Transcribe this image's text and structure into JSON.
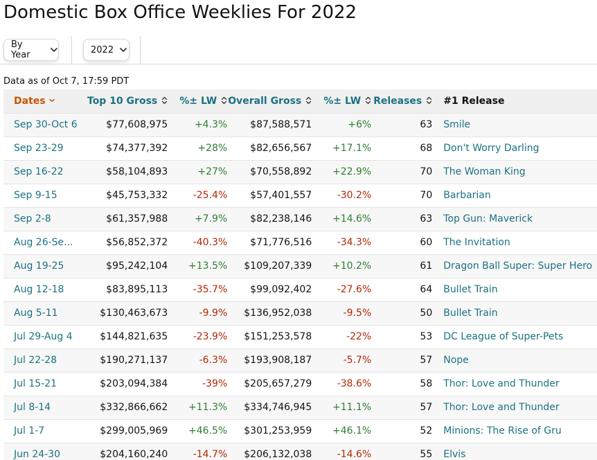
{
  "title": "Domestic Box Office Weeklies For 2022",
  "filters": {
    "view_label": "By Year",
    "year_label": "2022"
  },
  "as_of": "Data as of Oct 7, 17:59 PDT",
  "table": {
    "headers": {
      "dates": "Dates",
      "top10": "Top 10 Gross",
      "pct_lw1": "%± LW",
      "overall": "Overall Gross",
      "pct_lw2": "%± LW",
      "releases": "Releases",
      "first": "#1 Release"
    },
    "rows": [
      {
        "dates": "Sep 30-Oct 6",
        "top10": "$77,608,975",
        "pct1": "+4.3%",
        "pct1_sign": "pos",
        "overall": "$87,588,571",
        "pct2": "+6%",
        "pct2_sign": "pos",
        "releases": "63",
        "first": "Smile"
      },
      {
        "dates": "Sep 23-29",
        "top10": "$74,377,392",
        "pct1": "+28%",
        "pct1_sign": "pos",
        "overall": "$82,656,567",
        "pct2": "+17.1%",
        "pct2_sign": "pos",
        "releases": "68",
        "first": "Don't Worry Darling"
      },
      {
        "dates": "Sep 16-22",
        "top10": "$58,104,893",
        "pct1": "+27%",
        "pct1_sign": "pos",
        "overall": "$70,558,892",
        "pct2": "+22.9%",
        "pct2_sign": "pos",
        "releases": "70",
        "first": "The Woman King"
      },
      {
        "dates": "Sep 9-15",
        "top10": "$45,753,332",
        "pct1": "-25.4%",
        "pct1_sign": "neg",
        "overall": "$57,401,557",
        "pct2": "-30.2%",
        "pct2_sign": "neg",
        "releases": "70",
        "first": "Barbarian"
      },
      {
        "dates": "Sep 2-8",
        "top10": "$61,357,988",
        "pct1": "+7.9%",
        "pct1_sign": "pos",
        "overall": "$82,238,146",
        "pct2": "+14.6%",
        "pct2_sign": "pos",
        "releases": "63",
        "first": "Top Gun: Maverick"
      },
      {
        "dates": "Aug 26-Se...",
        "top10": "$56,852,372",
        "pct1": "-40.3%",
        "pct1_sign": "neg",
        "overall": "$71,776,516",
        "pct2": "-34.3%",
        "pct2_sign": "neg",
        "releases": "60",
        "first": "The Invitation"
      },
      {
        "dates": "Aug 19-25",
        "top10": "$95,242,104",
        "pct1": "+13.5%",
        "pct1_sign": "pos",
        "overall": "$109,207,339",
        "pct2": "+10.2%",
        "pct2_sign": "pos",
        "releases": "61",
        "first": "Dragon Ball Super: Super Hero"
      },
      {
        "dates": "Aug 12-18",
        "top10": "$83,895,113",
        "pct1": "-35.7%",
        "pct1_sign": "neg",
        "overall": "$99,092,402",
        "pct2": "-27.6%",
        "pct2_sign": "neg",
        "releases": "64",
        "first": "Bullet Train"
      },
      {
        "dates": "Aug 5-11",
        "top10": "$130,463,673",
        "pct1": "-9.9%",
        "pct1_sign": "neg",
        "overall": "$136,952,038",
        "pct2": "-9.5%",
        "pct2_sign": "neg",
        "releases": "50",
        "first": "Bullet Train"
      },
      {
        "dates": "Jul 29-Aug 4",
        "top10": "$144,821,635",
        "pct1": "-23.9%",
        "pct1_sign": "neg",
        "overall": "$151,253,578",
        "pct2": "-22%",
        "pct2_sign": "neg",
        "releases": "53",
        "first": "DC League of Super-Pets"
      },
      {
        "dates": "Jul 22-28",
        "top10": "$190,271,137",
        "pct1": "-6.3%",
        "pct1_sign": "neg",
        "overall": "$193,908,187",
        "pct2": "-5.7%",
        "pct2_sign": "neg",
        "releases": "57",
        "first": "Nope"
      },
      {
        "dates": "Jul 15-21",
        "top10": "$203,094,384",
        "pct1": "-39%",
        "pct1_sign": "neg",
        "overall": "$205,657,279",
        "pct2": "-38.6%",
        "pct2_sign": "neg",
        "releases": "58",
        "first": "Thor: Love and Thunder"
      },
      {
        "dates": "Jul 8-14",
        "top10": "$332,866,662",
        "pct1": "+11.3%",
        "pct1_sign": "pos",
        "overall": "$334,746,945",
        "pct2": "+11.1%",
        "pct2_sign": "pos",
        "releases": "57",
        "first": "Thor: Love and Thunder"
      },
      {
        "dates": "Jul 1-7",
        "top10": "$299,005,969",
        "pct1": "+46.5%",
        "pct1_sign": "pos",
        "overall": "$301,253,959",
        "pct2": "+46.1%",
        "pct2_sign": "pos",
        "releases": "52",
        "first": "Minions: The Rise of Gru"
      },
      {
        "dates": "Jun 24-30",
        "top10": "$204,160,240",
        "pct1": "-14.7%",
        "pct1_sign": "neg",
        "overall": "$206,132,038",
        "pct2": "-14.6%",
        "pct2_sign": "neg",
        "releases": "55",
        "first": "Elvis"
      }
    ]
  }
}
